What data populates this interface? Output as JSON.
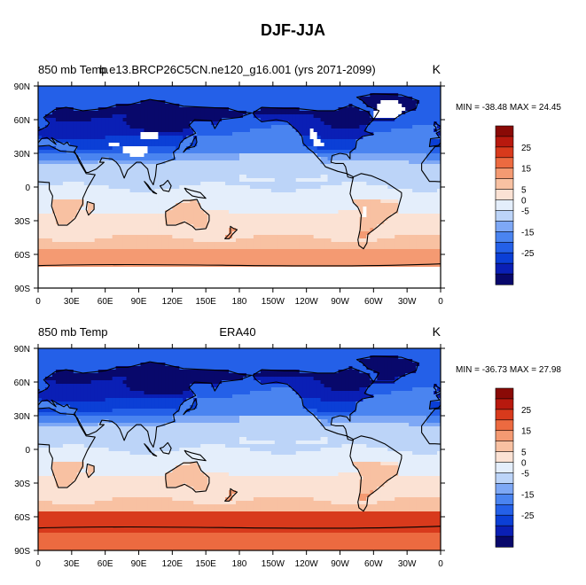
{
  "title": "DJF-JJA",
  "chart_data": [
    {
      "type": "heatmap",
      "panel_left_title": "850 mb Temp",
      "panel_center_title": "b.e13.BRCP26C5CN.ne120_g16.001 (yrs 2071-2099)",
      "units": "K",
      "stats": "MIN = -38.48 MAX =  24.45",
      "x_ticks": [
        "0",
        "30E",
        "60E",
        "90E",
        "120E",
        "150E",
        "180",
        "150W",
        "120W",
        "90W",
        "60W",
        "30W",
        "0"
      ],
      "y_ticks": [
        "90N",
        "60N",
        "30N",
        "0",
        "30S",
        "60S",
        "90S"
      ],
      "colorbar_levels": [
        -30,
        -25,
        -20,
        -15,
        -10,
        -5,
        0,
        5,
        10,
        15,
        20,
        25,
        30
      ],
      "colorbar_labels": [
        "25",
        "15",
        "5",
        "0",
        "-5",
        "-15",
        "-25"
      ],
      "missing_polar_south": true,
      "missing_high_terrain": true
    },
    {
      "type": "heatmap",
      "panel_left_title": "850 mb Temp",
      "panel_center_title": "ERA40",
      "units": "K",
      "stats": "MIN = -36.73 MAX =  27.98",
      "x_ticks": [
        "0",
        "30E",
        "60E",
        "90E",
        "120E",
        "150E",
        "180",
        "150W",
        "120W",
        "90W",
        "60W",
        "30W",
        "0"
      ],
      "y_ticks": [
        "90N",
        "60N",
        "30N",
        "0",
        "30S",
        "60S",
        "90S"
      ],
      "colorbar_levels": [
        -30,
        -25,
        -20,
        -15,
        -10,
        -5,
        0,
        5,
        10,
        15,
        20,
        25,
        30
      ],
      "colorbar_labels": [
        "25",
        "15",
        "5",
        "0",
        "-5",
        "-15",
        "-25"
      ],
      "missing_polar_south": false,
      "missing_high_terrain": false
    }
  ],
  "colors": {
    "palette": [
      "#08086b",
      "#0a1fb5",
      "#0b3fd6",
      "#2460e8",
      "#4a84f0",
      "#7ea8f5",
      "#bcd4f8",
      "#e4eefb",
      "#fbe2d4",
      "#f8c1a2",
      "#f49a72",
      "#ec6a40",
      "#d83a1c",
      "#b8190e",
      "#8a0a06"
    ],
    "coast": "#000000",
    "missing": "#ffffff"
  }
}
